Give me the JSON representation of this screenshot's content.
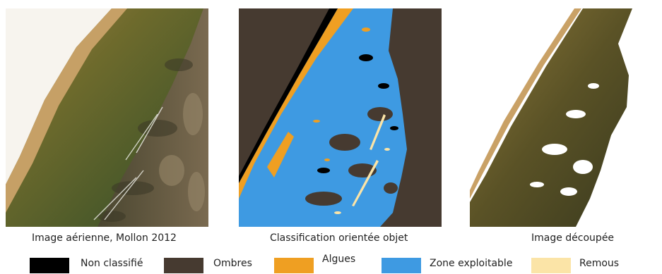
{
  "panels": [
    {
      "caption": "Image aérienne, Mollon 2012"
    },
    {
      "caption": "Classification orientée objet"
    },
    {
      "caption": "Image découpée"
    }
  ],
  "legend": [
    {
      "label": "Non classifié",
      "color": "#000000"
    },
    {
      "label": "Ombres",
      "color": "#463a30"
    },
    {
      "label": "Algues",
      "color": "#ef9f22"
    },
    {
      "label": "Zone exploitable",
      "color": "#3e9ae2"
    },
    {
      "label": "Remous",
      "color": "#fbe4a7"
    }
  ],
  "colors": {
    "shore": "#f8f5ef",
    "beach": "#c9a166",
    "water": "#5f6a2e",
    "vegetation": "#5c4c34"
  }
}
